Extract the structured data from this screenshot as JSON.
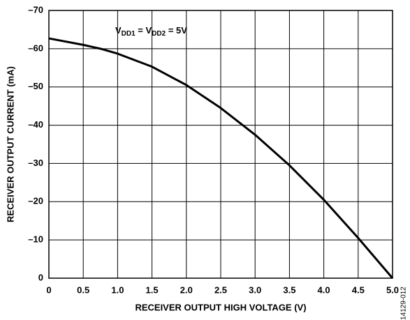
{
  "chart_data": {
    "type": "line",
    "y_label": "RECEIVER OUTPUT CURRENT (mA)",
    "x_label": "RECEIVER OUTPUT HIGH VOLTAGE (V)",
    "annotation": [
      "V",
      "DD1",
      " = V",
      "DD2",
      " = 5V"
    ],
    "figure_id": "14129-012",
    "x": [
      0,
      0.5,
      0.75,
      1.0,
      1.5,
      2.0,
      2.5,
      3.0,
      3.5,
      4.0,
      4.5,
      5.0
    ],
    "series": [
      {
        "name": "VDD1 = VDD2 = 5V",
        "color": "#000000",
        "values": [
          -62.7,
          -61,
          -60,
          -58.7,
          -55.3,
          -50.5,
          -44.5,
          -37.5,
          -29.5,
          -20.5,
          -10.5,
          0
        ]
      }
    ],
    "xlim": [
      0,
      5
    ],
    "xticks": [
      0,
      0.5,
      {
        "value": 1,
        "label": "1.0"
      },
      1.5,
      {
        "value": 2,
        "label": "2.0"
      },
      2.5,
      {
        "value": 3,
        "label": "3.0"
      },
      3.5,
      {
        "value": 4,
        "label": "4.0"
      },
      4.5,
      {
        "value": 5,
        "label": "5.0"
      }
    ],
    "ylim": [
      0,
      -70
    ],
    "yticks": [
      0,
      {
        "value": -10,
        "label": "–10"
      },
      {
        "value": -20,
        "label": "–20"
      },
      {
        "value": -30,
        "label": "–30"
      },
      {
        "value": -40,
        "label": "–40"
      },
      {
        "value": -50,
        "label": "–50"
      },
      {
        "value": -60,
        "label": "–60"
      },
      {
        "value": -70,
        "label": "–70"
      }
    ],
    "grid": true
  }
}
